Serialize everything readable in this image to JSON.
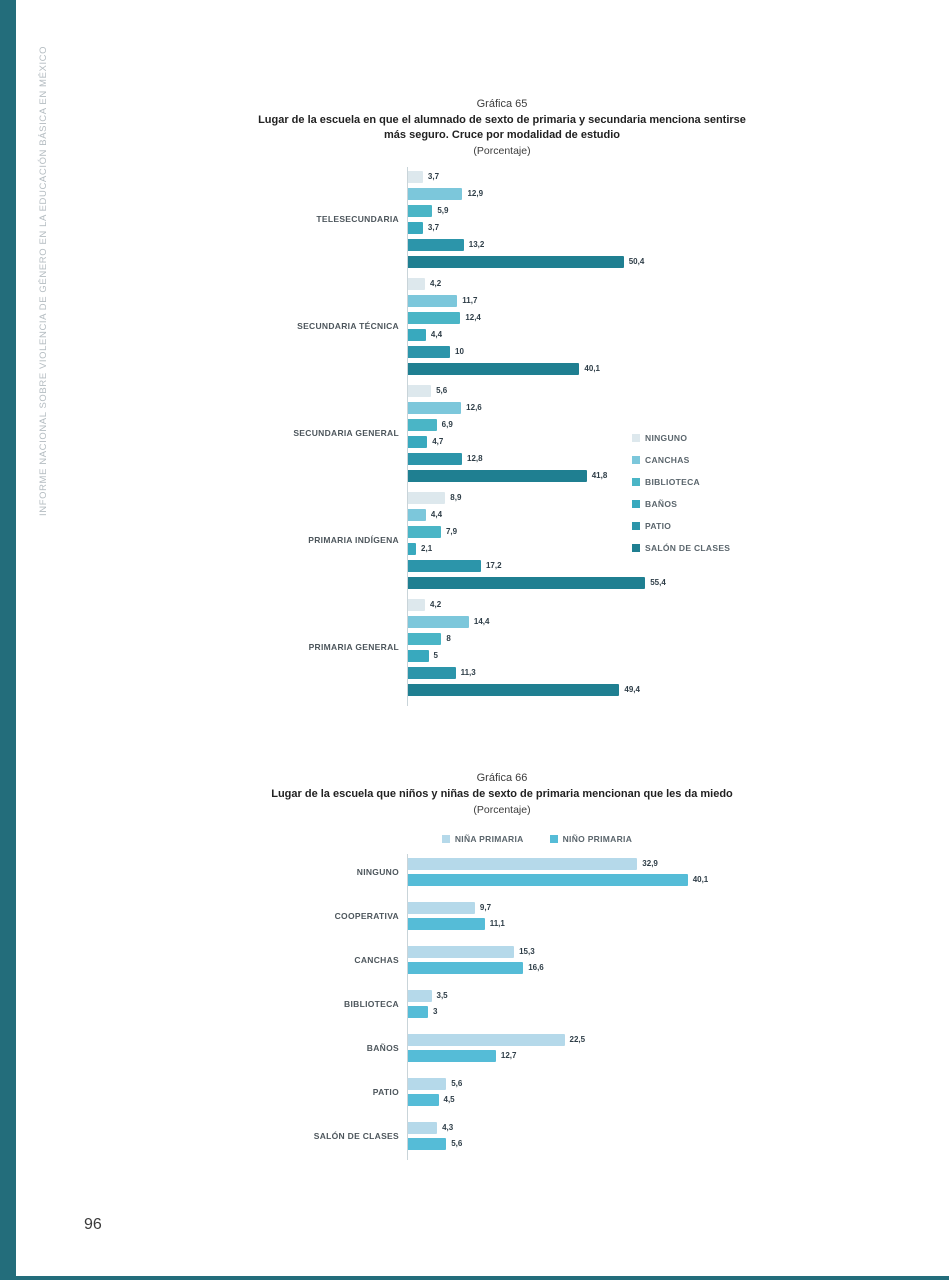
{
  "page": {
    "sidebar_text": "INFORME NACIONAL SOBRE VIOLENCIA DE GÉNERO EN LA EDUCACIÓN BÁSICA EN MÉXICO",
    "page_number": "96",
    "accent_color": "#236d7b"
  },
  "chart_data": [
    {
      "type": "bar",
      "orientation": "horizontal",
      "title": "Gráfica 65",
      "subtitle": "Lugar de la escuela en que el alumnado de sexto de primaria y secundaria menciona sentirse más seguro. Cruce por modalidad de estudio",
      "unit_label": "(Porcentaje)",
      "grid": false,
      "legend_position": "right",
      "xmax": 60,
      "categories": [
        "TELESECUNDARIA",
        "SECUNDARIA TÉCNICA",
        "SECUNDARIA GENERAL",
        "PRIMARIA INDÍGENA",
        "PRIMARIA GENERAL"
      ],
      "series": [
        {
          "name": "NINGUNO",
          "color": "#dde8ed",
          "values": [
            3.7,
            4.2,
            5.6,
            8.9,
            4.2
          ]
        },
        {
          "name": "CANCHAS",
          "color": "#7cc7db",
          "values": [
            12.9,
            11.7,
            12.6,
            4.4,
            14.4
          ]
        },
        {
          "name": "BIBLIOTECA",
          "color": "#4ab5c6",
          "values": [
            5.9,
            12.4,
            6.9,
            7.9,
            8
          ]
        },
        {
          "name": "BAÑOS",
          "color": "#38a9be",
          "values": [
            3.7,
            4.4,
            4.7,
            2.1,
            5
          ]
        },
        {
          "name": "PATIO",
          "color": "#2c95aa",
          "values": [
            13.2,
            10,
            12.8,
            17.2,
            11.3
          ]
        },
        {
          "name": "SALÓN DE CLASES",
          "color": "#1f7f91",
          "values": [
            50.4,
            40.1,
            41.8,
            55.4,
            49.4
          ]
        }
      ]
    },
    {
      "type": "bar",
      "orientation": "horizontal",
      "title": "Gráfica 66",
      "subtitle": "Lugar de la escuela que niños y niñas de sexto de primaria mencionan que les da miedo",
      "unit_label": "(Porcentaje)",
      "grid": false,
      "legend_position": "top",
      "xmax": 45,
      "categories": [
        "NINGUNO",
        "COOPERATIVA",
        "CANCHAS",
        "BIBLIOTECA",
        "BAÑOS",
        "PATIO",
        "SALÓN DE CLASES"
      ],
      "series": [
        {
          "name": "NIÑA PRIMARIA",
          "color": "#b5d9ea",
          "values": [
            32.9,
            9.7,
            15.3,
            3.5,
            22.5,
            5.6,
            4.3
          ]
        },
        {
          "name": "NIÑO PRIMARIA",
          "color": "#55bcd7",
          "values": [
            40.1,
            11.1,
            16.6,
            3,
            12.7,
            4.5,
            5.6
          ]
        }
      ]
    }
  ]
}
